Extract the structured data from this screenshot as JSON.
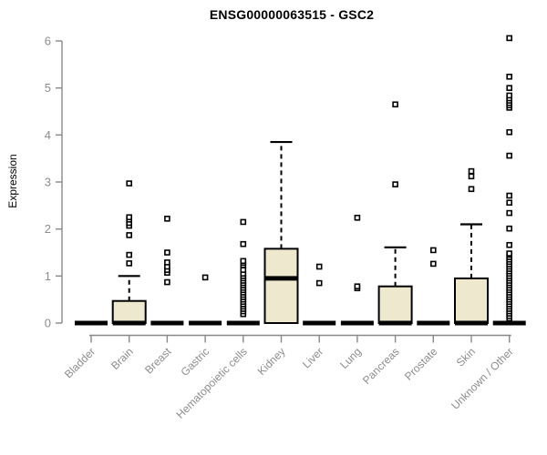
{
  "chart_data": {
    "type": "boxplot",
    "title": "ENSG00000063515 - GSC2",
    "ylabel": "Expression",
    "xlabel": "",
    "ylim": [
      0,
      6
    ],
    "y_ticks": [
      0,
      1,
      2,
      3,
      4,
      5,
      6
    ],
    "grid": "off",
    "legend": "none",
    "categories": [
      "Bladder",
      "Brain",
      "Breast",
      "Gastric",
      "Hematopoietic cells",
      "Kidney",
      "Liver",
      "Lung",
      "Pancreas",
      "Prostate",
      "Skin",
      "Unknown / Other"
    ],
    "series": [
      {
        "name": "Bladder",
        "q1": 0,
        "median": 0,
        "q3": 0,
        "whisker_low": 0,
        "whisker_high": 0,
        "outliers": []
      },
      {
        "name": "Brain",
        "q1": 0,
        "median": 0,
        "q3": 0.47,
        "whisker_low": 0,
        "whisker_high": 1.0,
        "outliers": [
          1.27,
          1.45,
          1.87,
          2.07,
          2.13,
          2.2,
          2.25,
          2.97
        ]
      },
      {
        "name": "Breast",
        "q1": 0,
        "median": 0,
        "q3": 0,
        "whisker_low": 0,
        "whisker_high": 0,
        "outliers": [
          0.87,
          1.07,
          1.13,
          1.2,
          1.29,
          1.5,
          2.22
        ]
      },
      {
        "name": "Gastric",
        "q1": 0,
        "median": 0,
        "q3": 0,
        "whisker_low": 0,
        "whisker_high": 0,
        "outliers": [
          0.97
        ]
      },
      {
        "name": "Hematopoietic cells",
        "q1": 0,
        "median": 0,
        "q3": 0,
        "whisker_low": 0,
        "whisker_high": 0,
        "outliers": [
          0.19,
          0.25,
          0.3,
          0.35,
          0.4,
          0.45,
          0.5,
          0.55,
          0.6,
          0.65,
          0.7,
          0.75,
          0.8,
          0.85,
          0.9,
          0.95,
          1.0,
          1.05,
          1.13,
          1.23,
          1.28,
          1.32,
          1.68,
          2.15
        ]
      },
      {
        "name": "Kidney",
        "q1": 0,
        "median": 0.95,
        "q3": 1.58,
        "whisker_low": 0,
        "whisker_high": 3.85,
        "outliers": []
      },
      {
        "name": "Liver",
        "q1": 0,
        "median": 0,
        "q3": 0,
        "whisker_low": 0,
        "whisker_high": 0,
        "outliers": [
          0.85,
          1.2
        ]
      },
      {
        "name": "Lung",
        "q1": 0,
        "median": 0,
        "q3": 0,
        "whisker_low": 0,
        "whisker_high": 0,
        "outliers": [
          0.74,
          0.78,
          2.24
        ]
      },
      {
        "name": "Pancreas",
        "q1": 0,
        "median": 0,
        "q3": 0.78,
        "whisker_low": 0,
        "whisker_high": 1.61,
        "outliers": [
          2.95,
          4.65
        ]
      },
      {
        "name": "Prostate",
        "q1": 0,
        "median": 0,
        "q3": 0,
        "whisker_low": 0,
        "whisker_high": 0,
        "outliers": [
          1.26,
          1.55
        ]
      },
      {
        "name": "Skin",
        "q1": 0,
        "median": 0,
        "q3": 0.95,
        "whisker_low": 0,
        "whisker_high": 2.1,
        "outliers": [
          2.85,
          3.12,
          3.23
        ]
      },
      {
        "name": "Unknown / Other",
        "q1": 0,
        "median": 0,
        "q3": 0,
        "whisker_low": 0,
        "whisker_high": 0,
        "outliers": [
          0.1,
          0.15,
          0.2,
          0.25,
          0.3,
          0.35,
          0.4,
          0.45,
          0.5,
          0.55,
          0.6,
          0.65,
          0.7,
          0.75,
          0.8,
          0.85,
          0.9,
          0.95,
          1.0,
          1.05,
          1.1,
          1.15,
          1.2,
          1.25,
          1.3,
          1.35,
          1.4,
          1.45,
          1.48,
          1.66,
          2.01,
          2.34,
          2.56,
          2.71,
          3.56,
          4.06,
          4.58,
          4.63,
          4.68,
          4.73,
          4.78,
          4.84,
          5.0,
          5.24,
          6.06
        ]
      }
    ]
  },
  "colors": {
    "box_fill": "#EDE8CE",
    "box_border": "#000000",
    "median": "#000000",
    "outlier_fill": "#FFFFFF",
    "axis_line": "#888888",
    "axis_text": "#8C8C8C",
    "title_text": "#000000"
  }
}
